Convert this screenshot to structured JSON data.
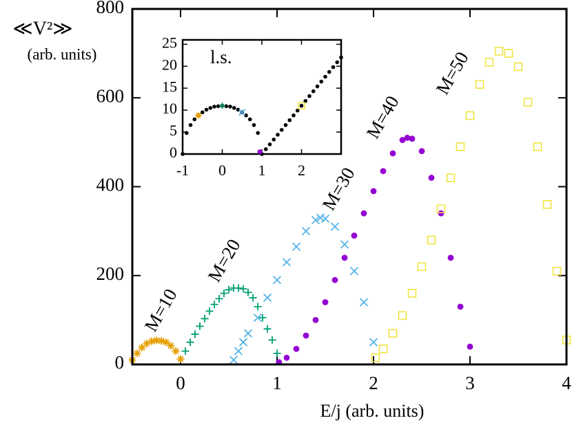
{
  "chart_data": {
    "type": "scatter",
    "ylabel": [
      "≪V²≫",
      "(arb. units)"
    ],
    "xlabel": "E/j  (arb. units)",
    "xlim": [
      -0.5,
      4
    ],
    "ylim": [
      0,
      800
    ],
    "xticks": [
      0,
      1,
      2,
      3,
      4
    ],
    "yticks": [
      0,
      200,
      400,
      600,
      800
    ],
    "series": [
      {
        "name": "M=10",
        "color": "#e69f00",
        "marker": "star",
        "x": [
          -0.5,
          -0.45,
          -0.4,
          -0.35,
          -0.3,
          -0.25,
          -0.2,
          -0.15,
          -0.1,
          -0.05,
          0
        ],
        "values": [
          10,
          25,
          38,
          47,
          52,
          54,
          53,
          50,
          42,
          30,
          12
        ]
      },
      {
        "name": "M=20",
        "color": "#009e73",
        "marker": "plus",
        "x": [
          0.05,
          0.1,
          0.15,
          0.2,
          0.25,
          0.3,
          0.35,
          0.4,
          0.45,
          0.5,
          0.55,
          0.6,
          0.65,
          0.7,
          0.75,
          0.8,
          0.85,
          0.9,
          0.95,
          1.0
        ],
        "values": [
          30,
          50,
          68,
          86,
          103,
          120,
          135,
          148,
          160,
          168,
          172,
          172,
          170,
          162,
          150,
          130,
          105,
          80,
          55,
          25
        ]
      },
      {
        "name": "M=30",
        "color": "#56b4e9",
        "marker": "x",
        "x": [
          0.55,
          0.6,
          0.65,
          0.7,
          0.8,
          0.9,
          1.0,
          1.1,
          1.2,
          1.3,
          1.4,
          1.45,
          1.5,
          1.6,
          1.7,
          1.8,
          1.9,
          2.0
        ],
        "values": [
          10,
          30,
          50,
          70,
          105,
          150,
          190,
          230,
          265,
          300,
          325,
          330,
          328,
          310,
          270,
          210,
          140,
          50
        ]
      },
      {
        "name": "M=40",
        "color": "#9400d3",
        "marker": "dot",
        "x": [
          1.02,
          1.1,
          1.2,
          1.3,
          1.4,
          1.5,
          1.6,
          1.7,
          1.8,
          1.9,
          2.0,
          2.1,
          2.2,
          2.3,
          2.35,
          2.4,
          2.5,
          2.6,
          2.7,
          2.8,
          2.9,
          3.0
        ],
        "values": [
          5,
          15,
          35,
          65,
          100,
          140,
          190,
          240,
          290,
          340,
          390,
          435,
          475,
          505,
          510,
          508,
          480,
          420,
          340,
          240,
          130,
          40
        ]
      },
      {
        "name": "M=50",
        "color": "#f0e442",
        "marker": "square",
        "x": [
          2.02,
          2.1,
          2.2,
          2.3,
          2.4,
          2.5,
          2.6,
          2.7,
          2.8,
          2.9,
          3.0,
          3.1,
          3.2,
          3.3,
          3.4,
          3.5,
          3.6,
          3.7,
          3.8,
          3.9,
          4.0
        ],
        "values": [
          15,
          35,
          70,
          110,
          160,
          220,
          280,
          350,
          420,
          490,
          560,
          630,
          680,
          705,
          700,
          670,
          590,
          490,
          360,
          210,
          55
        ]
      }
    ],
    "inset": {
      "label": "l.s.",
      "color": "#000000",
      "xlim": [
        -1,
        3
      ],
      "ylim": [
        0,
        26
      ],
      "xticks": [
        -1,
        0,
        1,
        2
      ],
      "yticks": [
        0,
        5,
        10,
        15,
        20,
        25
      ],
      "x": [
        -1,
        -0.9,
        -0.8,
        -0.7,
        -0.6,
        -0.5,
        -0.4,
        -0.3,
        -0.2,
        -0.1,
        0,
        0.1,
        0.2,
        0.3,
        0.4,
        0.5,
        0.6,
        0.7,
        0.8,
        0.9,
        1,
        1.1,
        1.2,
        1.3,
        1.4,
        1.5,
        1.6,
        1.7,
        1.8,
        1.9,
        2,
        2.1,
        2.2,
        2.3,
        2.4,
        2.5,
        2.6,
        2.7,
        2.8,
        2.9,
        3
      ],
      "values": [
        0,
        4.8,
        6.6,
        7.9,
        8.8,
        9.5,
        10.1,
        10.5,
        10.8,
        10.9,
        11,
        10.9,
        10.8,
        10.5,
        10.1,
        9.5,
        8.8,
        7.9,
        6.6,
        4.8,
        0,
        1.1,
        2.2,
        3.3,
        4.4,
        5.5,
        6.6,
        7.7,
        8.8,
        9.9,
        11,
        12.1,
        13.2,
        14.3,
        15.4,
        16.5,
        17.6,
        18.7,
        19.8,
        20.9,
        22
      ],
      "highlight_x": [
        -0.6,
        0,
        0.5,
        0.95,
        2
      ],
      "highlight_values": [
        8.8,
        11,
        9.5,
        0.5,
        11
      ]
    }
  }
}
